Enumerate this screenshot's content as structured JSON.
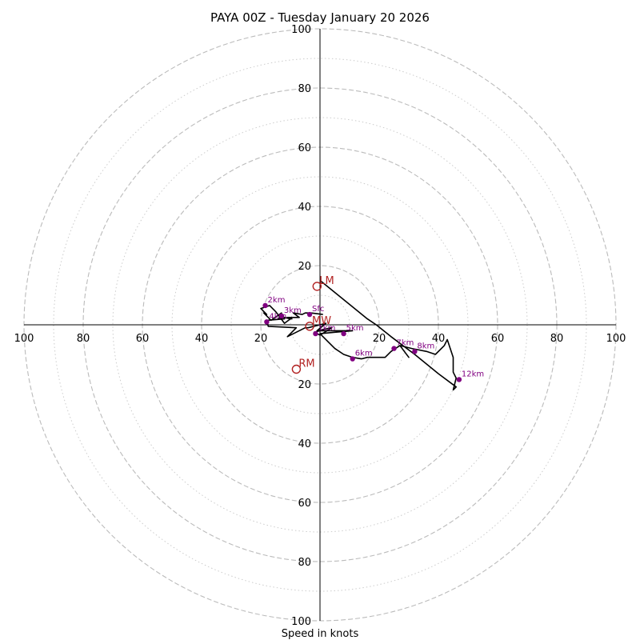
{
  "chart_data": {
    "type": "hodograph",
    "title": "PAYA 00Z - Tuesday January 20 2026",
    "xlabel": "Speed in knots",
    "axis_range_knots": [
      -100,
      100
    ],
    "tick_values": [
      20,
      40,
      60,
      80,
      100
    ],
    "tick_labels": [
      "20",
      "40",
      "60",
      "80",
      "100"
    ],
    "dashed_rings_knots": [
      20,
      40,
      60,
      80,
      100
    ],
    "dotted_rings_knots": [
      10,
      30,
      50,
      70,
      90
    ],
    "trace_uv": [
      [
        1,
        3.5
      ],
      [
        -3,
        4
      ],
      [
        -5,
        4
      ],
      [
        -6,
        3.5
      ],
      [
        -9,
        4
      ],
      [
        -7,
        2.5
      ],
      [
        -11,
        2.5
      ],
      [
        -9.5,
        2
      ],
      [
        -13,
        2.7
      ],
      [
        -10,
        2
      ],
      [
        -12,
        0.5
      ],
      [
        -15,
        4.5
      ],
      [
        -17,
        6.5
      ],
      [
        -20,
        5.5
      ],
      [
        -18,
        3.5
      ],
      [
        -19,
        4
      ],
      [
        -16.5,
        1.5
      ],
      [
        -13,
        4
      ],
      [
        -14,
        2
      ],
      [
        -12,
        2
      ],
      [
        -18,
        1.5
      ],
      [
        -17.5,
        -0.5
      ],
      [
        -8,
        -1
      ],
      [
        -11,
        -4
      ],
      [
        -5,
        -1
      ],
      [
        -4,
        -1
      ],
      [
        2,
        0.5
      ],
      [
        -1,
        -2
      ],
      [
        4,
        -1
      ],
      [
        0,
        -3.5
      ],
      [
        -2,
        -2.5
      ],
      [
        0,
        -2
      ],
      [
        6,
        -2
      ],
      [
        8,
        -2
      ],
      [
        11,
        -2
      ],
      [
        5,
        -2.5
      ],
      [
        0,
        -3
      ],
      [
        3,
        -6
      ],
      [
        5,
        -8
      ],
      [
        8,
        -10
      ],
      [
        11,
        -11
      ],
      [
        14,
        -11.5
      ],
      [
        16,
        -11
      ],
      [
        19,
        -11
      ],
      [
        22,
        -11
      ],
      [
        24,
        -9
      ],
      [
        27,
        -7
      ],
      [
        30,
        -11
      ],
      [
        27,
        -7
      ],
      [
        31,
        -8
      ],
      [
        36,
        -9
      ],
      [
        39,
        -10
      ],
      [
        42,
        -7
      ],
      [
        43,
        -5
      ],
      [
        45,
        -11
      ],
      [
        45,
        -16
      ],
      [
        46,
        -18
      ],
      [
        45,
        -22
      ],
      [
        46,
        -21
      ],
      [
        40,
        -16.5
      ],
      [
        32,
        -10
      ],
      [
        24,
        -4
      ],
      [
        19,
        0
      ],
      [
        16,
        2
      ],
      [
        0,
        15
      ]
    ],
    "height_markers": [
      {
        "label": "Sfc",
        "u": -3.5,
        "v": 3.5
      },
      {
        "label": "1km",
        "u": -1.5,
        "v": -3
      },
      {
        "label": "2km",
        "u": -18.5,
        "v": 6.5
      },
      {
        "label": "3km",
        "u": -13,
        "v": 3
      },
      {
        "label": "4km",
        "u": -18,
        "v": 1
      },
      {
        "label": "5km",
        "u": 8,
        "v": -3
      },
      {
        "label": "6km",
        "u": 11,
        "v": -11.5
      },
      {
        "label": "7km",
        "u": 25,
        "v": -8
      },
      {
        "label": "8km",
        "u": 32,
        "v": -9
      },
      {
        "label": "12km",
        "u": 47,
        "v": -18.5
      }
    ],
    "storm_motions": [
      {
        "label": "LM",
        "u": -1,
        "v": 13
      },
      {
        "label": "MW",
        "u": -3.5,
        "v": -0.5
      },
      {
        "label": "RM",
        "u": -8,
        "v": -15
      }
    ],
    "colors": {
      "trace": "#000000",
      "height_marker": "#800080",
      "storm_motion": "#b22222",
      "grid": "#bbbbbb",
      "axes": "#000000"
    }
  }
}
